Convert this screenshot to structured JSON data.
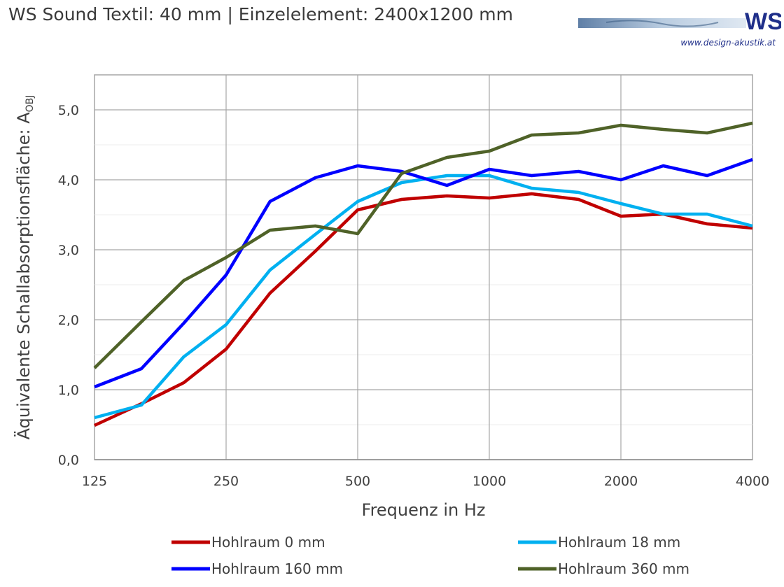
{
  "header": {
    "title": "WS Sound Textil: 40 mm | Einzelelement: 2400x1200 mm",
    "logo_text": "WS",
    "url": "www.design-akustik.at"
  },
  "chart_data": {
    "type": "line",
    "title": "WS Sound Textil: 40 mm | Einzelelement: 2400x1200 mm",
    "xlabel": "Frequenz in Hz",
    "ylabel_main": "Äquivalente Schallabsorptionsfläche: A",
    "ylabel_sub": "OBJ",
    "x_scale": "log",
    "x": [
      125,
      160,
      200,
      250,
      315,
      400,
      500,
      630,
      800,
      1000,
      1250,
      1600,
      2000,
      2500,
      3150,
      4000
    ],
    "x_ticks": [
      125,
      250,
      500,
      1000,
      2000,
      4000
    ],
    "x_tick_labels": [
      "125",
      "250",
      "500",
      "1000",
      "2000",
      "4000"
    ],
    "ylim": [
      0,
      5.5
    ],
    "y_ticks": [
      0,
      1,
      2,
      3,
      4,
      5
    ],
    "y_tick_labels": [
      "0,0",
      "1,0",
      "2,0",
      "3,0",
      "4,0",
      "5,0"
    ],
    "grid": true,
    "legend_position": "bottom",
    "series": [
      {
        "name": "Hohlraum 0 mm",
        "color": "#c00000",
        "values": [
          0.49,
          0.8,
          1.1,
          1.58,
          2.38,
          2.98,
          3.57,
          3.72,
          3.77,
          3.74,
          3.8,
          3.72,
          3.48,
          3.51,
          3.37,
          3.31
        ]
      },
      {
        "name": "Hohlraum 18 mm",
        "color": "#00b0f0",
        "values": [
          0.6,
          0.78,
          1.47,
          1.93,
          2.71,
          3.22,
          3.69,
          3.96,
          4.06,
          4.06,
          3.88,
          3.82,
          3.66,
          3.51,
          3.51,
          3.34
        ]
      },
      {
        "name": "Hohlraum 160 mm",
        "color": "#0000ff",
        "values": [
          1.04,
          1.3,
          1.95,
          2.64,
          3.69,
          4.03,
          4.2,
          4.12,
          3.92,
          4.15,
          4.06,
          4.12,
          4.0,
          4.2,
          4.06,
          4.29
        ]
      },
      {
        "name": "Hohlraum 360 mm",
        "color": "#4f6228",
        "values": [
          1.31,
          1.97,
          2.56,
          2.89,
          3.28,
          3.34,
          3.23,
          4.09,
          4.32,
          4.41,
          4.64,
          4.67,
          4.78,
          4.72,
          4.67,
          4.81
        ]
      }
    ]
  }
}
